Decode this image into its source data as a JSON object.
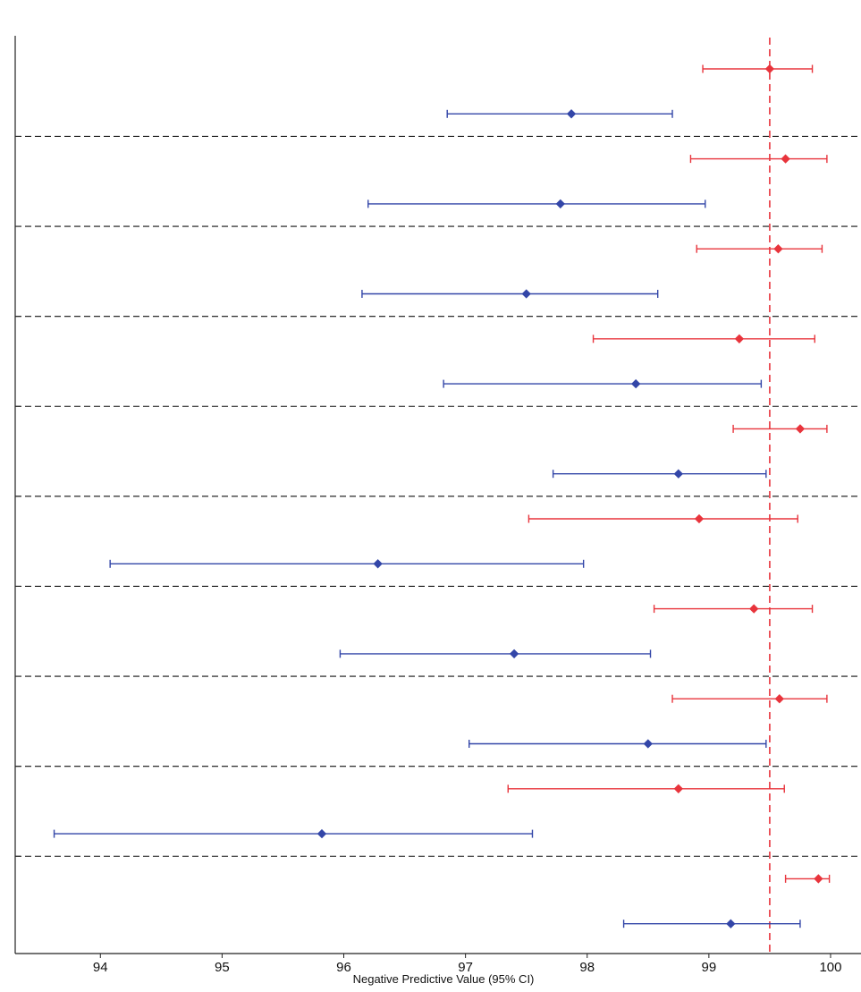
{
  "chart_data": {
    "type": "scatter",
    "subtype": "forest-plot",
    "title": "",
    "xlabel": "Negative Predictive Value (95% CI)",
    "ylabel": "",
    "xlim": [
      93.3,
      100.25
    ],
    "x_ticks": [
      94,
      95,
      96,
      97,
      98,
      99,
      100
    ],
    "x_tick_labels": [
      "94",
      "95",
      "96",
      "97",
      "98",
      "99",
      "100"
    ],
    "reference_line": 99.5,
    "rows_per_group": 2,
    "colors": {
      "red": "#e8343c",
      "blue": "#3346a8",
      "reference": "#e8343c",
      "separator": "#111111",
      "axis": "#222222"
    },
    "grid": false,
    "legend": "none",
    "series": [
      {
        "color": "red",
        "points": [
          {
            "est": 99.5,
            "lo": 98.95,
            "hi": 99.85
          },
          {
            "est": 99.63,
            "lo": 98.85,
            "hi": 99.97
          },
          {
            "est": 99.57,
            "lo": 98.9,
            "hi": 99.93
          },
          {
            "est": 99.25,
            "lo": 98.05,
            "hi": 99.87
          },
          {
            "est": 99.75,
            "lo": 99.2,
            "hi": 99.97
          },
          {
            "est": 98.92,
            "lo": 97.52,
            "hi": 99.73
          },
          {
            "est": 99.37,
            "lo": 98.55,
            "hi": 99.85
          },
          {
            "est": 99.58,
            "lo": 98.7,
            "hi": 99.97
          },
          {
            "est": 98.75,
            "lo": 97.35,
            "hi": 99.62
          },
          {
            "est": 99.9,
            "lo": 99.63,
            "hi": 99.99
          }
        ]
      },
      {
        "color": "blue",
        "points": [
          {
            "est": 97.87,
            "lo": 96.85,
            "hi": 98.7
          },
          {
            "est": 97.78,
            "lo": 96.2,
            "hi": 98.97
          },
          {
            "est": 97.5,
            "lo": 96.15,
            "hi": 98.58
          },
          {
            "est": 98.4,
            "lo": 96.82,
            "hi": 99.43
          },
          {
            "est": 98.75,
            "lo": 97.72,
            "hi": 99.47
          },
          {
            "est": 96.28,
            "lo": 94.08,
            "hi": 97.97
          },
          {
            "est": 97.4,
            "lo": 95.97,
            "hi": 98.52
          },
          {
            "est": 98.5,
            "lo": 97.03,
            "hi": 99.47
          },
          {
            "est": 95.82,
            "lo": 93.62,
            "hi": 97.55
          },
          {
            "est": 99.18,
            "lo": 98.3,
            "hi": 99.75
          }
        ]
      }
    ]
  }
}
